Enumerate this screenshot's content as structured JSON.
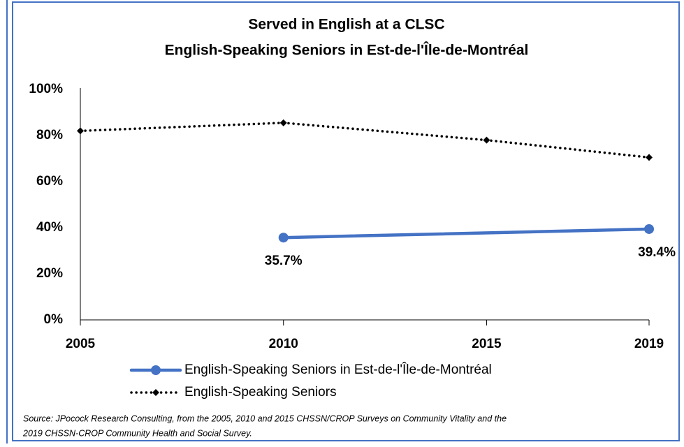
{
  "chart_data": {
    "type": "line",
    "title": [
      "Served in English at a CLSC",
      "English-Speaking Seniors in Est-de-l'Île-de-Montréal"
    ],
    "x": [
      2005,
      2010,
      2015,
      2019
    ],
    "series": [
      {
        "name": "English-Speaking Seniors in Est-de-l'Île-de-Montréal",
        "color": "#4472c4",
        "style": "solid",
        "marker": "circle",
        "x": [
          2010,
          2019
        ],
        "values": [
          35.7,
          39.4
        ],
        "value_labels": [
          "35.7%",
          "39.4%"
        ]
      },
      {
        "name": "English-Speaking Seniors",
        "color": "#000000",
        "style": "dotted",
        "marker": "diamond",
        "values": [
          82,
          85.5,
          78,
          70.5
        ]
      }
    ],
    "xlim": [
      2005,
      2019
    ],
    "xticks": [
      2005,
      2010,
      2015,
      2019
    ],
    "ylim": [
      0,
      100
    ],
    "yticks": [
      {
        "value": 0,
        "label": "0%"
      },
      {
        "value": 20,
        "label": "20%"
      },
      {
        "value": 40,
        "label": "40%"
      },
      {
        "value": 60,
        "label": "60%"
      },
      {
        "value": 80,
        "label": "80%"
      },
      {
        "value": 100,
        "label": "100%"
      }
    ],
    "grid": false,
    "legend": "bottom",
    "source": [
      "Source: JPocock Research Consulting, from the 2005, 2010  and 2015  CHSSN/CROP Surveys on Community Vitality and the",
      "2019  CHSSN-CROP Community Health and Social Survey."
    ]
  }
}
